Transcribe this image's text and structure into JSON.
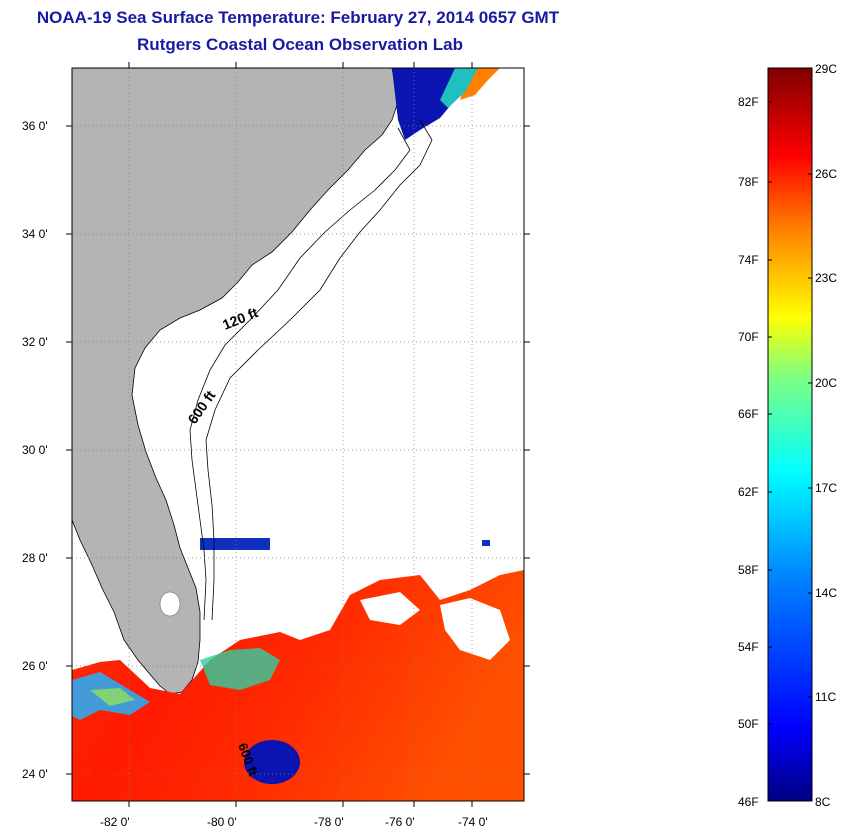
{
  "header": {
    "title": "NOAA-19 Sea Surface Temperature:  February 27, 2014 0657 GMT",
    "subtitle": "Rutgers Coastal Ocean Observation Lab"
  },
  "map": {
    "lat_labels": [
      "36 0'",
      "34 0'",
      "32 0'",
      "30 0'",
      "28 0'",
      "26 0'",
      "24 0'"
    ],
    "lon_labels": [
      "-82 0'",
      "-80 0'",
      "-78 0'",
      "-76 0'",
      "-74 0'"
    ],
    "contour_labels": [
      "120 ft",
      "600 ft",
      "600 ft"
    ],
    "colors": {
      "land": "#b4b4b4",
      "ocean_no_data": "#ffffff",
      "grid": "#808080"
    }
  },
  "colorbar": {
    "fahrenheit_labels": [
      "82F",
      "78F",
      "74F",
      "70F",
      "66F",
      "62F",
      "58F",
      "54F",
      "50F",
      "46F"
    ],
    "celsius_labels": [
      "29C",
      "26C",
      "23C",
      "20C",
      "17C",
      "14C",
      "11C",
      "8C"
    ],
    "colors": [
      "#800000",
      "#ff0000",
      "#ff8000",
      "#ffff00",
      "#80ff80",
      "#00ffff",
      "#0080ff",
      "#0000ff",
      "#000080"
    ]
  }
}
